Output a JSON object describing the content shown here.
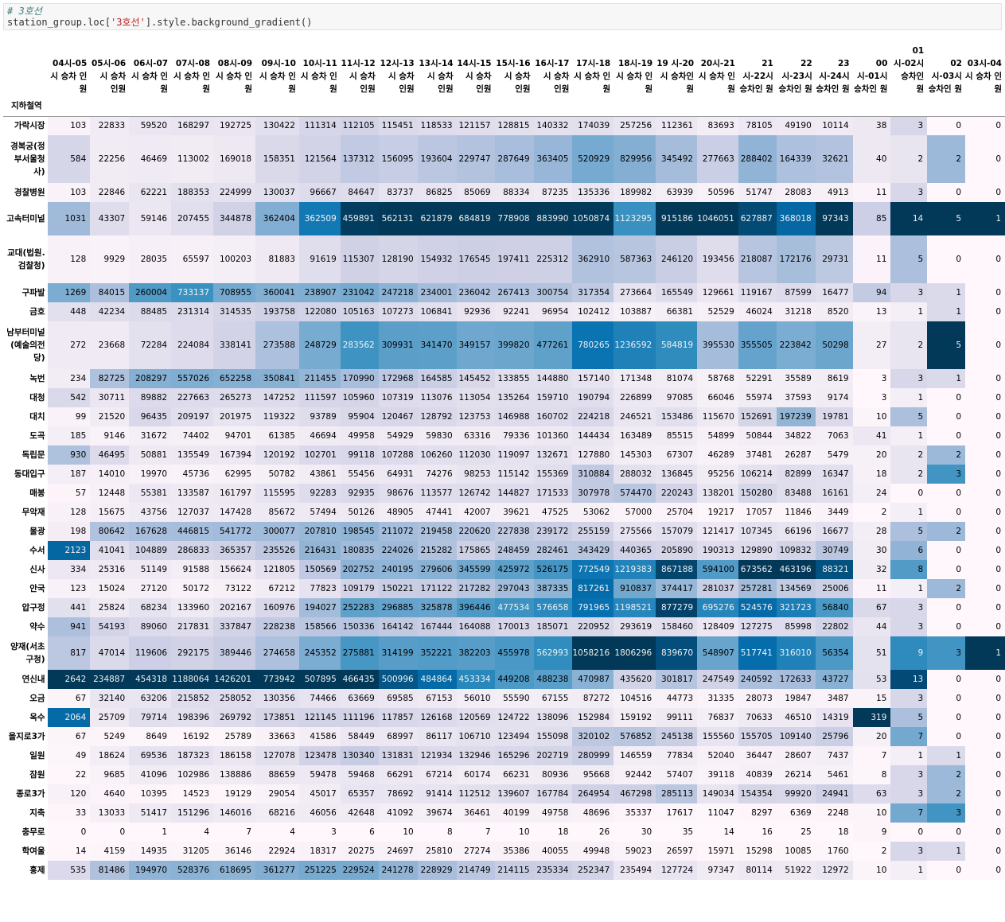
{
  "code": {
    "comment": "# 3호선",
    "line_prefix": "station_group.loc[",
    "line_string": "'3호선'",
    "line_suffix": "].style.background_gradient()"
  },
  "table": {
    "index_name": "지하철역",
    "columns": [
      "04시-05 시 승차 인원",
      "05시-06 시 승차 인원",
      "06시-07 시 승차 인원",
      "07시-08 시 승차 인원",
      "08시-09 시 승차 인원",
      "09시-10 시 승차 인원",
      "10시-11 시 승차 인원",
      "11시-12 시 승차 인원",
      "12시-13 시 승차 인원",
      "13시-14 시 승차 인원",
      "14시-15 시 승차 인원",
      "15시-16 시 승차 인원",
      "16시-17 시 승차 인원",
      "17시-18 시 승차 인원",
      "18시-19 시 승차 인원",
      "19 시-20시 승차인 원",
      "20시-21 시 승차 인원",
      "21 시-22시 승차인 원",
      "22 시-23시 승차인 원",
      "23 시-24시 승차인 원",
      "00 시-01시 승차인 원",
      "01 시-02시 승차인 원",
      "02 시-03시 승차인 원",
      "03시-04 시 승차 인원"
    ],
    "rows": [
      {
        "station": "가락시장",
        "values": [
          103,
          22833,
          59520,
          168297,
          192725,
          130422,
          111314,
          112105,
          115451,
          118533,
          121157,
          128815,
          140332,
          174039,
          257256,
          112361,
          83693,
          78105,
          49190,
          10114,
          38,
          3,
          0,
          0
        ]
      },
      {
        "station": "경복궁(정부서울청사)",
        "values": [
          584,
          22256,
          46469,
          113002,
          169018,
          158351,
          121564,
          137312,
          156095,
          193604,
          229747,
          287649,
          363405,
          520929,
          829956,
          345492,
          277663,
          288402,
          164339,
          32621,
          40,
          2,
          2,
          0
        ]
      },
      {
        "station": "경찰병원",
        "values": [
          103,
          22846,
          62221,
          188353,
          224999,
          130037,
          96667,
          84647,
          83737,
          86825,
          85069,
          88334,
          87235,
          135336,
          189982,
          63939,
          50596,
          51747,
          28083,
          4913,
          11,
          3,
          0,
          0
        ]
      },
      {
        "station": "고속터미널",
        "values": [
          1031,
          43307,
          59146,
          207455,
          344878,
          362404,
          362509,
          459891,
          562131,
          621879,
          684819,
          778908,
          883990,
          1050874,
          1123295,
          915186,
          1046051,
          627887,
          368018,
          97343,
          85,
          14,
          5,
          1
        ]
      },
      {
        "station": "교대(법원.검찰청)",
        "values": [
          128,
          9929,
          28035,
          65597,
          100203,
          81883,
          91619,
          115307,
          128190,
          154932,
          176545,
          197411,
          225312,
          362910,
          587363,
          246120,
          193456,
          218087,
          172176,
          29731,
          11,
          5,
          0,
          0
        ]
      },
      {
        "station": "구파발",
        "values": [
          1269,
          84015,
          260004,
          733137,
          708955,
          360041,
          238907,
          231042,
          247218,
          234001,
          236042,
          267413,
          300754,
          317354,
          273664,
          165549,
          129661,
          119167,
          87599,
          16477,
          94,
          3,
          1,
          0
        ]
      },
      {
        "station": "금호",
        "values": [
          448,
          42234,
          88485,
          231314,
          314535,
          193758,
          122080,
          105163,
          107273,
          106841,
          92936,
          92241,
          96954,
          102412,
          103887,
          66381,
          52529,
          46024,
          31218,
          8520,
          13,
          1,
          1,
          0
        ]
      },
      {
        "station": "남부터미널(예술의전당)",
        "values": [
          272,
          23668,
          72284,
          224084,
          338141,
          273588,
          248729,
          283562,
          309931,
          341470,
          349157,
          399820,
          477261,
          780265,
          1236592,
          584819,
          395530,
          355505,
          223842,
          50298,
          27,
          2,
          5,
          0
        ]
      },
      {
        "station": "녹번",
        "values": [
          234,
          82725,
          208297,
          557026,
          652258,
          350841,
          211455,
          170990,
          172968,
          164585,
          145452,
          133855,
          144880,
          157140,
          171348,
          81074,
          58768,
          52291,
          35589,
          8619,
          3,
          3,
          1,
          0
        ]
      },
      {
        "station": "대청",
        "values": [
          542,
          30711,
          89882,
          227663,
          265273,
          147252,
          111597,
          105960,
          107319,
          113076,
          113054,
          135264,
          159710,
          190794,
          226899,
          97085,
          66046,
          55974,
          37593,
          9174,
          3,
          1,
          0,
          0
        ]
      },
      {
        "station": "대치",
        "values": [
          99,
          21520,
          96435,
          209197,
          201975,
          119322,
          93789,
          95904,
          120467,
          128792,
          123753,
          146988,
          160702,
          224218,
          246521,
          153486,
          115670,
          152691,
          197239,
          19781,
          10,
          5,
          0,
          0
        ]
      },
      {
        "station": "도곡",
        "values": [
          185,
          9146,
          31672,
          74402,
          94701,
          61385,
          46694,
          49958,
          54929,
          59830,
          63316,
          79336,
          101360,
          144434,
          163489,
          85515,
          54899,
          50844,
          34822,
          7063,
          41,
          1,
          0,
          0
        ]
      },
      {
        "station": "독립문",
        "values": [
          930,
          46495,
          50881,
          135549,
          167394,
          120192,
          102701,
          99118,
          107288,
          106260,
          112030,
          119097,
          132671,
          127880,
          145303,
          67307,
          46289,
          37481,
          26287,
          5479,
          20,
          2,
          2,
          0
        ]
      },
      {
        "station": "동대입구",
        "values": [
          187,
          14010,
          19970,
          45736,
          62995,
          50782,
          43861,
          55456,
          64931,
          74276,
          98253,
          115142,
          155369,
          310884,
          288032,
          136845,
          95256,
          106214,
          82899,
          16347,
          18,
          2,
          3,
          0
        ]
      },
      {
        "station": "매봉",
        "values": [
          57,
          12448,
          55381,
          133587,
          161797,
          115595,
          92283,
          92935,
          98676,
          113577,
          126742,
          144827,
          171533,
          307978,
          574470,
          220243,
          138201,
          150280,
          83488,
          16161,
          24,
          0,
          0,
          0
        ]
      },
      {
        "station": "무악재",
        "values": [
          128,
          15675,
          43756,
          127037,
          147428,
          85672,
          57494,
          50126,
          48905,
          47441,
          42007,
          39621,
          47525,
          53062,
          57000,
          25704,
          19217,
          17057,
          11846,
          3449,
          2,
          1,
          0,
          0
        ]
      },
      {
        "station": "물광",
        "values": [
          198,
          80642,
          167628,
          446815,
          541772,
          300077,
          207810,
          198545,
          211072,
          219458,
          220620,
          227838,
          239172,
          255159,
          275566,
          157079,
          121417,
          107345,
          66196,
          16677,
          28,
          5,
          2,
          0
        ]
      },
      {
        "station": "수서",
        "values": [
          2123,
          41041,
          104889,
          286833,
          365357,
          235526,
          216431,
          180835,
          224026,
          215282,
          175865,
          248459,
          282461,
          343429,
          440365,
          205890,
          190313,
          129890,
          109832,
          30749,
          30,
          6,
          0,
          0
        ]
      },
      {
        "station": "신사",
        "values": [
          334,
          25316,
          51149,
          91588,
          156624,
          121805,
          150569,
          202752,
          240195,
          279606,
          345599,
          425972,
          526175,
          772549,
          1219383,
          867188,
          594100,
          673562,
          463196,
          88321,
          32,
          8,
          0,
          0
        ]
      },
      {
        "station": "안국",
        "values": [
          123,
          15024,
          27120,
          50172,
          73122,
          67212,
          77823,
          109179,
          150221,
          171122,
          217282,
          297043,
          387335,
          817261,
          910837,
          374417,
          281037,
          257281,
          134569,
          25006,
          11,
          1,
          2,
          0
        ]
      },
      {
        "station": "압구정",
        "values": [
          441,
          25824,
          68234,
          133960,
          202167,
          160976,
          194027,
          252283,
          296885,
          325878,
          396446,
          477534,
          576658,
          791965,
          1198521,
          877279,
          695276,
          524576,
          321723,
          56840,
          67,
          3,
          0,
          0
        ]
      },
      {
        "station": "약수",
        "values": [
          941,
          54193,
          89060,
          217831,
          337847,
          228238,
          158566,
          150336,
          164142,
          167444,
          164088,
          170013,
          185071,
          220952,
          293619,
          158460,
          128409,
          127275,
          85998,
          22802,
          44,
          3,
          0,
          0
        ]
      },
      {
        "station": "양재(서초구청)",
        "values": [
          817,
          47014,
          119606,
          292175,
          389446,
          274658,
          245352,
          275881,
          314199,
          352221,
          382203,
          455978,
          562993,
          1058216,
          1806296,
          839670,
          548907,
          517741,
          316010,
          56354,
          51,
          9,
          3,
          1
        ]
      },
      {
        "station": "연신내",
        "values": [
          2642,
          234887,
          454318,
          1188064,
          1426201,
          773942,
          507895,
          466435,
          500996,
          484864,
          453334,
          449208,
          488238,
          470987,
          435620,
          301817,
          247549,
          240592,
          172633,
          43727,
          53,
          13,
          0,
          0
        ]
      },
      {
        "station": "오금",
        "values": [
          67,
          32140,
          63206,
          215852,
          258052,
          130356,
          74466,
          63669,
          69585,
          67153,
          56010,
          55590,
          67155,
          87272,
          104516,
          44773,
          31335,
          28073,
          19847,
          3487,
          15,
          3,
          0,
          0
        ]
      },
      {
        "station": "옥수",
        "values": [
          2064,
          25709,
          79714,
          198396,
          269792,
          173851,
          121145,
          111196,
          117857,
          126168,
          120569,
          124722,
          138096,
          152984,
          159192,
          99111,
          76837,
          70633,
          46510,
          14319,
          319,
          5,
          0,
          0
        ]
      },
      {
        "station": "을지로3가",
        "values": [
          67,
          5249,
          8649,
          16192,
          25789,
          33663,
          41586,
          58449,
          68997,
          86117,
          106710,
          123494,
          155098,
          320102,
          576852,
          245138,
          155560,
          155705,
          109140,
          25796,
          20,
          7,
          0,
          0
        ]
      },
      {
        "station": "일원",
        "values": [
          49,
          18624,
          69536,
          187323,
          186158,
          127078,
          123478,
          130340,
          131831,
          121934,
          132946,
          165296,
          202719,
          280999,
          146559,
          77834,
          52040,
          36447,
          28607,
          7437,
          7,
          1,
          1,
          0
        ]
      },
      {
        "station": "잠원",
        "values": [
          22,
          9685,
          41096,
          102986,
          138886,
          88659,
          59478,
          59468,
          66291,
          67214,
          60174,
          66231,
          80936,
          95668,
          92442,
          57407,
          39118,
          40839,
          26214,
          5461,
          8,
          3,
          2,
          0
        ]
      },
      {
        "station": "종로3가",
        "values": [
          120,
          4640,
          10395,
          14523,
          19129,
          29054,
          45017,
          65357,
          78692,
          91414,
          112512,
          139607,
          167784,
          264954,
          467298,
          285113,
          149034,
          154354,
          99920,
          24941,
          63,
          3,
          2,
          0
        ]
      },
      {
        "station": "지축",
        "values": [
          33,
          13033,
          51417,
          151296,
          146016,
          68216,
          46056,
          42648,
          41092,
          39674,
          36461,
          40199,
          49758,
          48696,
          35337,
          17617,
          11047,
          8297,
          6369,
          2248,
          10,
          7,
          3,
          0
        ]
      },
      {
        "station": "충무로",
        "values": [
          0,
          0,
          1,
          4,
          7,
          4,
          3,
          6,
          10,
          8,
          7,
          10,
          18,
          26,
          30,
          35,
          14,
          16,
          25,
          18,
          9,
          0,
          0,
          0
        ]
      },
      {
        "station": "학여울",
        "values": [
          14,
          4159,
          14935,
          31205,
          36146,
          22924,
          18317,
          20275,
          24697,
          25810,
          27274,
          35386,
          40055,
          49948,
          59023,
          26597,
          15971,
          15298,
          10085,
          1760,
          2,
          3,
          1,
          0
        ]
      },
      {
        "station": "홍제",
        "values": [
          535,
          81486,
          194970,
          528376,
          618695,
          361277,
          251225,
          229524,
          241278,
          228929,
          214749,
          214115,
          235334,
          252347,
          235494,
          127724,
          97347,
          80114,
          51922,
          12972,
          10,
          1,
          0,
          0
        ]
      }
    ]
  }
}
